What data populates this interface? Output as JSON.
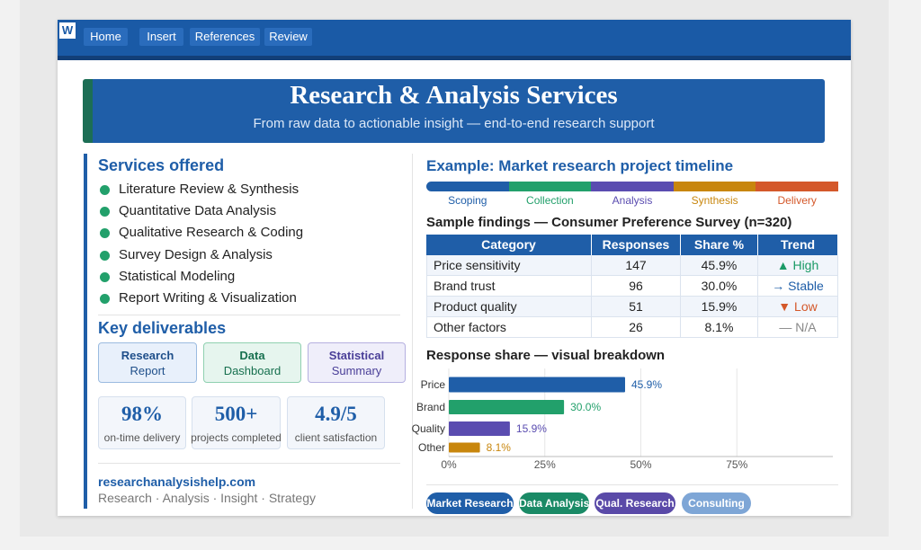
{
  "app": {
    "logo": "W",
    "tabs": [
      "Home",
      "Insert",
      "References",
      "Review"
    ]
  },
  "header": {
    "title": "Research & Analysis Services",
    "subtitle": "From raw data to actionable insight — end-to-end research support"
  },
  "services": {
    "heading": "Services offered",
    "items": [
      "Literature Review & Synthesis",
      "Quantitative Data Analysis",
      "Qualitative Research & Coding",
      "Survey Design & Analysis",
      "Statistical Modeling",
      "Report Writing & Visualization"
    ]
  },
  "deliverables": {
    "heading": "Key deliverables",
    "cards": [
      {
        "title": "Research",
        "subtitle": "Report"
      },
      {
        "title": "Data",
        "subtitle": "Dashboard"
      },
      {
        "title": "Statistical",
        "subtitle": "Summary"
      }
    ]
  },
  "stats": [
    {
      "value": "98%",
      "label": "on-time delivery"
    },
    {
      "value": "500+",
      "label": "projects completed"
    },
    {
      "value": "4.9/5",
      "label": "client satisfaction"
    }
  ],
  "footer": {
    "site": "researchanalysishelp.com",
    "tagline": "Research · Analysis · Insight · Strategy"
  },
  "timeline": {
    "heading": "Example: Market research project timeline",
    "phases": [
      {
        "name": "Scoping",
        "color": "#1f5ea8"
      },
      {
        "name": "Collection",
        "color": "#22a06b"
      },
      {
        "name": "Analysis",
        "color": "#5a4cb0"
      },
      {
        "name": "Synthesis",
        "color": "#c8860d"
      },
      {
        "name": "Delivery",
        "color": "#d4582a"
      }
    ]
  },
  "findings": {
    "heading": "Sample findings — Consumer Preference Survey (n=320)",
    "columns": [
      "Category",
      "Responses",
      "Share %",
      "Trend"
    ],
    "rows": [
      [
        "Price sensitivity",
        "147",
        "45.9%",
        "▲ High"
      ],
      [
        "Brand trust",
        "96",
        "30.0%",
        "→ Stable"
      ],
      [
        "Product quality",
        "51",
        "15.9%",
        "▼ Low"
      ],
      [
        "Other factors",
        "26",
        "8.1%",
        "— N/A"
      ]
    ],
    "trend_colors": [
      "#1a9a66",
      "#1f5ea8",
      "#d4582a",
      "#888888"
    ]
  },
  "chart_data": {
    "type": "bar",
    "orientation": "horizontal",
    "title": "Response share — visual breakdown",
    "categories": [
      "Price",
      "Brand",
      "Quality",
      "Other"
    ],
    "values": [
      45.9,
      30.0,
      15.9,
      8.1
    ],
    "value_labels": [
      "45.9%",
      "30.0%",
      "15.9%",
      "8.1%"
    ],
    "colors": [
      "#1f5ea8",
      "#22a06b",
      "#5a4cb0",
      "#c8860d"
    ],
    "xlim": [
      0,
      100
    ],
    "xticks": [
      {
        "value": 0,
        "label": "0%"
      },
      {
        "value": 25,
        "label": "25%"
      },
      {
        "value": 50,
        "label": "50%"
      },
      {
        "value": 75,
        "label": "75%"
      }
    ],
    "grid": true
  },
  "tags": [
    {
      "label": "Market Research",
      "color": "#1f5ea8"
    },
    {
      "label": "Data Analysis",
      "color": "#1a8a66"
    },
    {
      "label": "Qual. Research",
      "color": "#5a4aa8"
    },
    {
      "label": "Consulting",
      "color": "#7ea6d6"
    }
  ]
}
